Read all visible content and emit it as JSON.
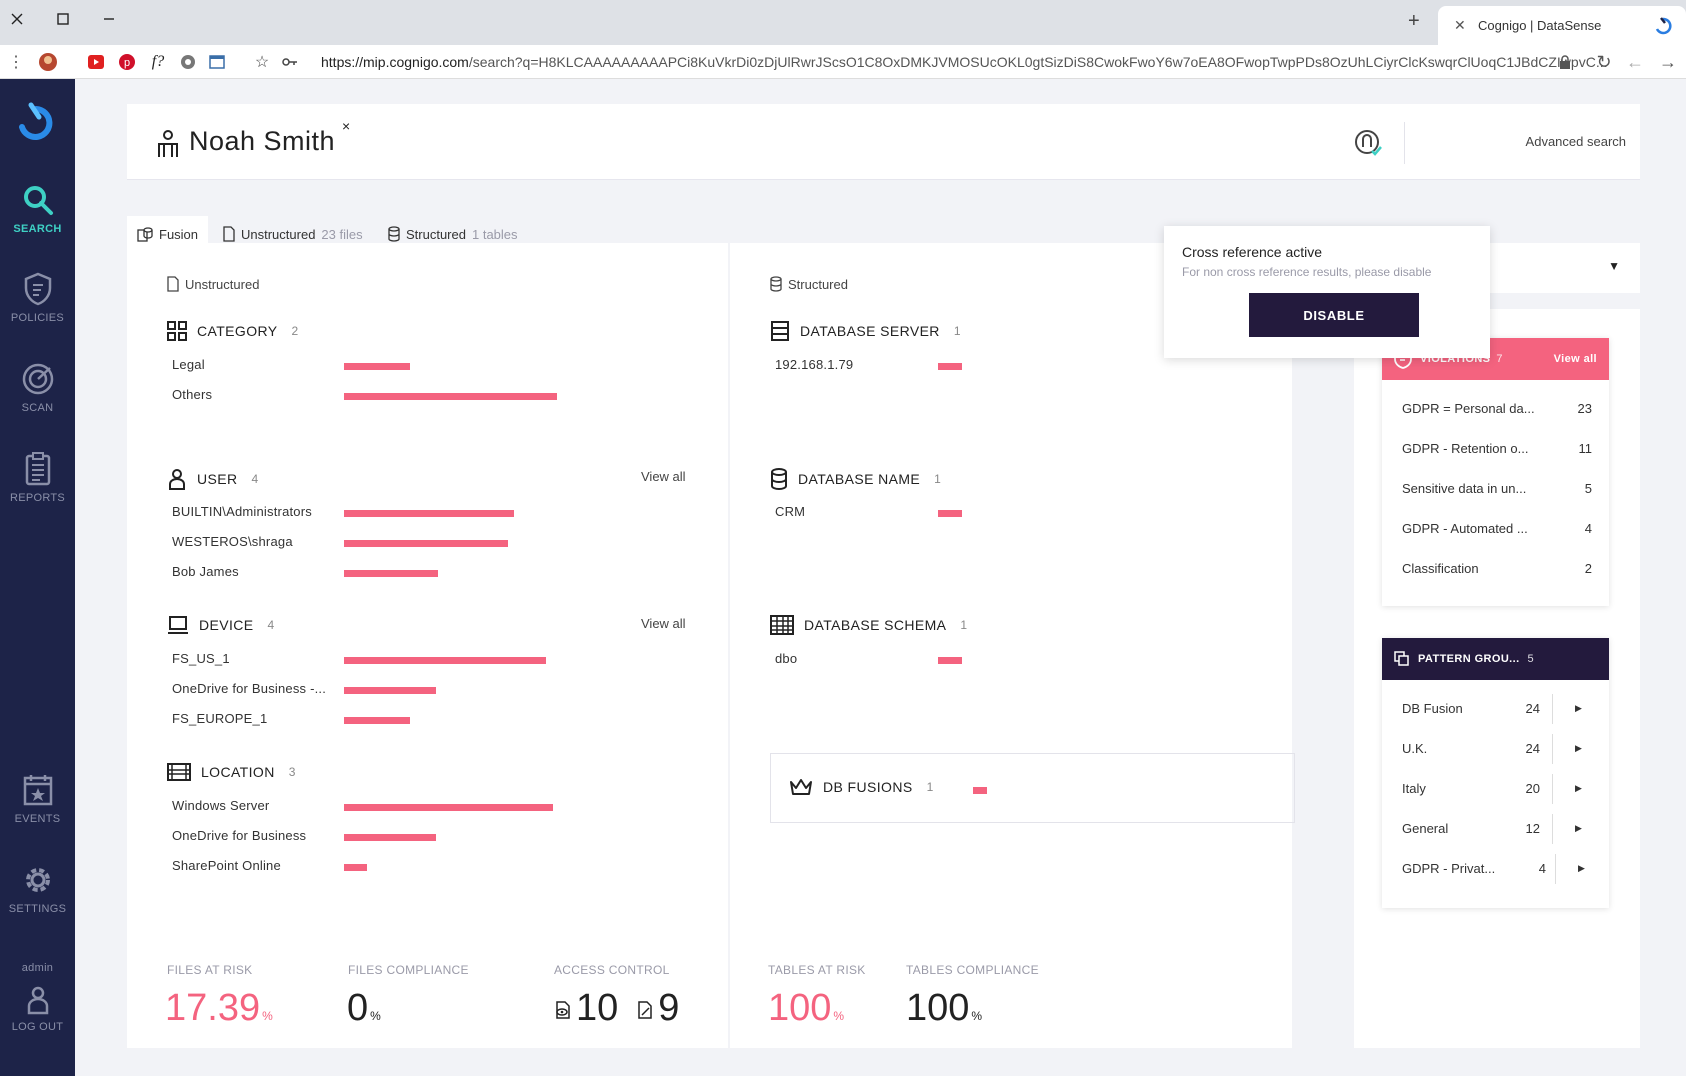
{
  "browser": {
    "tab_title": "Cognigo | DataSense",
    "url_host": "https://mip.cognigo.com",
    "url_rest": "/search?q=H8KLCAAAAAAAAAPCi8KuVkrDi0zDjUlRwrJScsO1C8OxDMKJVMOSUcOKL0gtSizDiS8CwokFwoY6w7oEA8OFwopTwpPDs8OzUhLCiyrClcKswqrClUoqC1JBdCZIwpvC...",
    "new_tab_label": "+"
  },
  "sidebar": {
    "items": [
      {
        "label": "SEARCH",
        "icon": "search-icon"
      },
      {
        "label": "POLICIES",
        "icon": "shield-icon"
      },
      {
        "label": "SCAN",
        "icon": "radar-icon"
      },
      {
        "label": "REPORTS",
        "icon": "clipboard-icon"
      },
      {
        "label": "EVENTS",
        "icon": "calendar-icon"
      },
      {
        "label": "SETTINGS",
        "icon": "gear-icon"
      }
    ],
    "user_name": "admin",
    "logout_label": "LOG OUT"
  },
  "header": {
    "person_name": "Noah Smith",
    "close_symbol": "×",
    "advanced_search": "Advanced search"
  },
  "popover": {
    "title": "Cross reference active",
    "subtitle": "For non cross reference results, please disable",
    "button": "DISABLE"
  },
  "tabs": [
    {
      "label": "Fusion",
      "count": ""
    },
    {
      "label": "Unstructured",
      "count": "23 files"
    },
    {
      "label": "Structured",
      "count": "1 tables"
    }
  ],
  "unstructured": {
    "label": "Unstructured",
    "sections": [
      {
        "title": "CATEGORY",
        "count": "2",
        "view_all": "",
        "rows": [
          {
            "name": "Legal",
            "value": 0.31
          },
          {
            "name": "Others",
            "value": 1.0
          }
        ]
      },
      {
        "title": "USER",
        "count": "4",
        "view_all": "View all",
        "rows": [
          {
            "name": "BUILTIN\\Administrators",
            "value": 0.8
          },
          {
            "name": "WESTEROS\\shraga",
            "value": 0.77
          },
          {
            "name": "Bob James",
            "value": 0.44
          }
        ]
      },
      {
        "title": "DEVICE",
        "count": "4",
        "view_all": "View all",
        "rows": [
          {
            "name": "FS_US_1",
            "value": 0.95
          },
          {
            "name": "OneDrive for Business -...",
            "value": 0.43
          },
          {
            "name": "FS_EUROPE_1",
            "value": 0.31
          }
        ]
      },
      {
        "title": "LOCATION",
        "count": "3",
        "view_all": "",
        "rows": [
          {
            "name": "Windows Server",
            "value": 0.98
          },
          {
            "name": "OneDrive for Business",
            "value": 0.43
          },
          {
            "name": "SharePoint Online",
            "value": 0.11
          }
        ]
      }
    ],
    "metrics": {
      "files_at_risk_label": "FILES AT RISK",
      "files_at_risk_value": "17.39",
      "files_compliance_label": "FILES COMPLIANCE",
      "files_compliance_value": "0",
      "access_control_label": "ACCESS CONTROL",
      "access_control_value_a": "10",
      "access_control_value_b": "9",
      "percent": "%"
    }
  },
  "structured": {
    "label": "Structured",
    "sections": [
      {
        "title": "DATABASE SERVER",
        "count": "1",
        "rows": [
          {
            "name": "192.168.1.79",
            "value": 1.0
          }
        ]
      },
      {
        "title": "DATABASE NAME",
        "count": "1",
        "rows": [
          {
            "name": "CRM",
            "value": 1.0
          }
        ]
      },
      {
        "title": "DATABASE SCHEMA",
        "count": "1",
        "rows": [
          {
            "name": "dbo",
            "value": 1.0
          }
        ]
      }
    ],
    "db_fusions": {
      "title": "DB FUSIONS",
      "count": "1"
    },
    "metrics": {
      "tables_at_risk_label": "TABLES AT RISK",
      "tables_at_risk_value": "100",
      "tables_compliance_label": "TABLES COMPLIANCE",
      "tables_compliance_value": "100",
      "percent": "%"
    }
  },
  "dropdown_caret": "▼",
  "violations": {
    "title": "VIOLATIONS",
    "count": "7",
    "view_all": "View all",
    "color": "#f4637f",
    "rows": [
      {
        "name": "GDPR = Personal da...",
        "value": "23"
      },
      {
        "name": "GDPR - Retention o...",
        "value": "11"
      },
      {
        "name": "Sensitive data in un...",
        "value": "5"
      },
      {
        "name": "GDPR - Automated ...",
        "value": "4"
      },
      {
        "name": "Classification",
        "value": "2"
      }
    ]
  },
  "pattern_groups": {
    "title": "PATTERN GROU...",
    "count": "5",
    "color": "#231a3d",
    "rows": [
      {
        "name": "DB Fusion",
        "value": "24"
      },
      {
        "name": "U.K.",
        "value": "24"
      },
      {
        "name": "Italy",
        "value": "20"
      },
      {
        "name": "General",
        "value": "12"
      },
      {
        "name": "GDPR - Privat...",
        "value": "4"
      }
    ]
  },
  "colors": {
    "accent": "#f4637f",
    "sidebar": "#1d2348",
    "active": "#3ed0c4",
    "dark_button": "#231a3d"
  }
}
